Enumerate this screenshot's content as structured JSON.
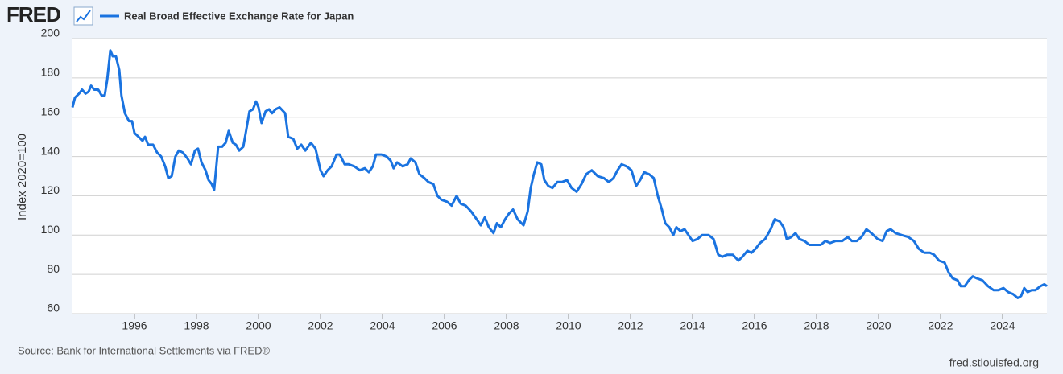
{
  "chart_data": {
    "type": "line",
    "logo": "FRED",
    "ylabel": "Index 2020=100",
    "source": "Source: Bank for International Settlements via FRED®",
    "site": "fred.stlouisfed.org",
    "grid": true,
    "xlim": [
      1994,
      2025.43
    ],
    "xticks": [
      1996,
      1998,
      2000,
      2002,
      2004,
      2006,
      2008,
      2010,
      2012,
      2014,
      2016,
      2018,
      2020,
      2022,
      2024
    ],
    "ylim": [
      60,
      200
    ],
    "yticks": [
      60,
      80,
      100,
      120,
      140,
      160,
      180,
      200
    ],
    "x": [
      1994.0,
      1994.08,
      1994.21,
      1994.31,
      1994.42,
      1994.52,
      1994.6,
      1994.7,
      1994.83,
      1994.94,
      1995.04,
      1995.12,
      1995.22,
      1995.3,
      1995.4,
      1995.51,
      1995.58,
      1995.69,
      1995.82,
      1995.92,
      1996.0,
      1996.13,
      1996.26,
      1996.34,
      1996.44,
      1996.6,
      1996.73,
      1996.86,
      1996.99,
      1997.09,
      1997.2,
      1997.32,
      1997.43,
      1997.56,
      1997.71,
      1997.82,
      1997.95,
      1998.05,
      1998.16,
      1998.29,
      1998.39,
      1998.49,
      1998.57,
      1998.7,
      1998.83,
      1998.94,
      1999.04,
      1999.17,
      1999.27,
      1999.38,
      1999.51,
      1999.61,
      1999.71,
      1999.82,
      1999.92,
      2000.0,
      2000.1,
      2000.23,
      2000.34,
      2000.44,
      2000.55,
      2000.68,
      2000.86,
      2000.96,
      2001.12,
      2001.25,
      2001.38,
      2001.51,
      2001.69,
      2001.84,
      2002.0,
      2002.1,
      2002.23,
      2002.36,
      2002.52,
      2002.62,
      2002.78,
      2002.91,
      2003.09,
      2003.27,
      2003.43,
      2003.56,
      2003.69,
      2003.79,
      2003.97,
      2004.13,
      2004.26,
      2004.36,
      2004.47,
      2004.65,
      2004.81,
      2004.91,
      2005.06,
      2005.19,
      2005.35,
      2005.48,
      2005.64,
      2005.77,
      2005.9,
      2006.08,
      2006.23,
      2006.39,
      2006.52,
      2006.68,
      2006.86,
      2007.04,
      2007.17,
      2007.3,
      2007.43,
      2007.58,
      2007.69,
      2007.82,
      2007.95,
      2008.08,
      2008.21,
      2008.36,
      2008.55,
      2008.68,
      2008.78,
      2008.88,
      2008.99,
      2009.12,
      2009.22,
      2009.35,
      2009.48,
      2009.64,
      2009.79,
      2009.95,
      2010.1,
      2010.26,
      2010.42,
      2010.57,
      2010.75,
      2010.94,
      2011.14,
      2011.3,
      2011.45,
      2011.58,
      2011.71,
      2011.87,
      2012.03,
      2012.18,
      2012.31,
      2012.44,
      2012.6,
      2012.75,
      2012.88,
      2013.01,
      2013.12,
      2013.25,
      2013.38,
      2013.48,
      2013.61,
      2013.74,
      2013.87,
      2014.0,
      2014.16,
      2014.31,
      2014.52,
      2014.68,
      2014.83,
      2014.96,
      2015.12,
      2015.3,
      2015.48,
      2015.61,
      2015.77,
      2015.9,
      2016.03,
      2016.18,
      2016.34,
      2016.52,
      2016.65,
      2016.81,
      2016.94,
      2017.04,
      2017.19,
      2017.32,
      2017.45,
      2017.61,
      2017.77,
      2017.95,
      2018.13,
      2018.29,
      2018.44,
      2018.62,
      2018.83,
      2019.01,
      2019.14,
      2019.3,
      2019.45,
      2019.61,
      2019.77,
      2019.97,
      2020.13,
      2020.26,
      2020.39,
      2020.55,
      2020.75,
      2020.96,
      2021.14,
      2021.3,
      2021.48,
      2021.66,
      2021.79,
      2021.95,
      2022.13,
      2022.26,
      2022.39,
      2022.55,
      2022.65,
      2022.78,
      2022.91,
      2023.04,
      2023.17,
      2023.35,
      2023.53,
      2023.71,
      2023.87,
      2024.03,
      2024.18,
      2024.34,
      2024.49,
      2024.6,
      2024.7,
      2024.81,
      2024.94,
      2025.06,
      2025.22,
      2025.35,
      2025.43
    ],
    "series": [
      {
        "name": "Real Broad Effective Exchange Rate for Japan",
        "color": "#1a73e0",
        "values": [
          165,
          170,
          172,
          174,
          172,
          173,
          176,
          174,
          174,
          171,
          171,
          179,
          194,
          191,
          191,
          184,
          171,
          162,
          158,
          158,
          152,
          150,
          148,
          150,
          146,
          146,
          142,
          140,
          135,
          129,
          130,
          140,
          143,
          142,
          139,
          136,
          143,
          144,
          137,
          133,
          128,
          126,
          123,
          145,
          145,
          147,
          153,
          147,
          146,
          143,
          145,
          154,
          163,
          164,
          168,
          165,
          157,
          163,
          164,
          162,
          164,
          165,
          162,
          150,
          149,
          144,
          146,
          143,
          147,
          144,
          133,
          130,
          133,
          135,
          141,
          141,
          136,
          136,
          135,
          133,
          134,
          132,
          135,
          141,
          141,
          140,
          138,
          134,
          137,
          135,
          136,
          139,
          137,
          131,
          129,
          127,
          126,
          120,
          118,
          117,
          115,
          120,
          116,
          115,
          112,
          108,
          105,
          109,
          104,
          101,
          106,
          104,
          108,
          111,
          113,
          108,
          105,
          112,
          124,
          131,
          137,
          136,
          128,
          125,
          124,
          127,
          127,
          128,
          124,
          122,
          126,
          131,
          133,
          130,
          129,
          127,
          129,
          133,
          136,
          135,
          133,
          125,
          128,
          132,
          131,
          129,
          120,
          113,
          106,
          104,
          100,
          104,
          102,
          103,
          100,
          97,
          98,
          100,
          100,
          98,
          90,
          89,
          90,
          90,
          87,
          89,
          92,
          91,
          93,
          96,
          98,
          103,
          108,
          107,
          104,
          98,
          99,
          101,
          98,
          97,
          95,
          95,
          95,
          97,
          96,
          97,
          97,
          99,
          97,
          97,
          99,
          103,
          101,
          98,
          97,
          102,
          103,
          101,
          100,
          99,
          97,
          93,
          91,
          91,
          90,
          87,
          86,
          81,
          78,
          77,
          74,
          74,
          77,
          79,
          78,
          77,
          74,
          72,
          72,
          73,
          71,
          70,
          68,
          69,
          73,
          71,
          72,
          72,
          74,
          75,
          74
        ]
      }
    ]
  }
}
